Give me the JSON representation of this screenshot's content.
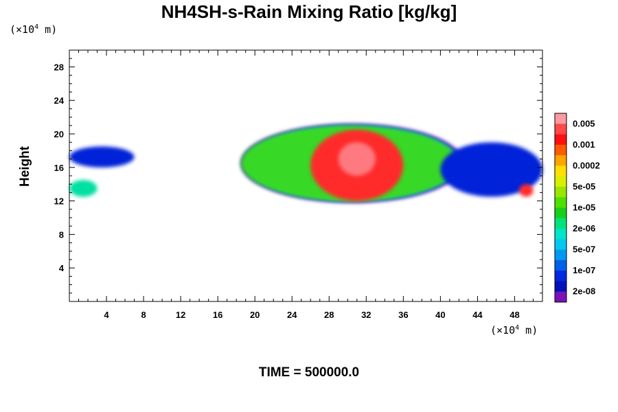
{
  "chart_data": {
    "type": "heatmap",
    "title": "NH4SH-s-Rain Mixing Ratio [kg/kg]",
    "ylabel": "Height",
    "x_unit": "(×10⁴ m)",
    "y_unit": "(×10⁴ m)",
    "footer": "TIME = 500000.0",
    "xlim": [
      0,
      51
    ],
    "ylim": [
      0,
      30
    ],
    "x_ticks": [
      "4",
      "8",
      "12",
      "16",
      "20",
      "24",
      "28",
      "32",
      "36",
      "40",
      "44",
      "48"
    ],
    "y_ticks": [
      "4",
      "8",
      "12",
      "16",
      "20",
      "24",
      "28"
    ],
    "colorbar": {
      "labels": [
        "0.005",
        "0.001",
        "0.0002",
        "5e-05",
        "1e-05",
        "2e-06",
        "5e-07",
        "1e-07",
        "2e-08"
      ],
      "colors": [
        "#ff9aa0",
        "#ff4a4a",
        "#ff1010",
        "#ff5a00",
        "#ffa500",
        "#ffe000",
        "#d8f000",
        "#9ae600",
        "#4ee000",
        "#18d018",
        "#00e37a",
        "#00e4c8",
        "#00c8f0",
        "#0098f0",
        "#0060e8",
        "#0028e0",
        "#0010b8",
        "#7a10b8"
      ]
    },
    "regions": [
      {
        "x": [
          0,
          7
        ],
        "y": [
          16,
          18.5
        ],
        "level": "1e-07"
      },
      {
        "x": [
          0,
          3
        ],
        "y": [
          12.5,
          14.5
        ],
        "level": "2e-06"
      },
      {
        "x": [
          18.5,
          42
        ],
        "y": [
          12,
          21
        ],
        "level": "1e-05"
      },
      {
        "x": [
          26,
          36
        ],
        "y": [
          12,
          20.5
        ],
        "level": "0.001"
      },
      {
        "x": [
          29,
          33
        ],
        "y": [
          15,
          19
        ],
        "level": "0.005"
      },
      {
        "x": [
          40,
          51
        ],
        "y": [
          12.5,
          19
        ],
        "level": "1e-07"
      },
      {
        "x": [
          48.5,
          50
        ],
        "y": [
          12.5,
          14
        ],
        "level": "0.001"
      }
    ]
  }
}
